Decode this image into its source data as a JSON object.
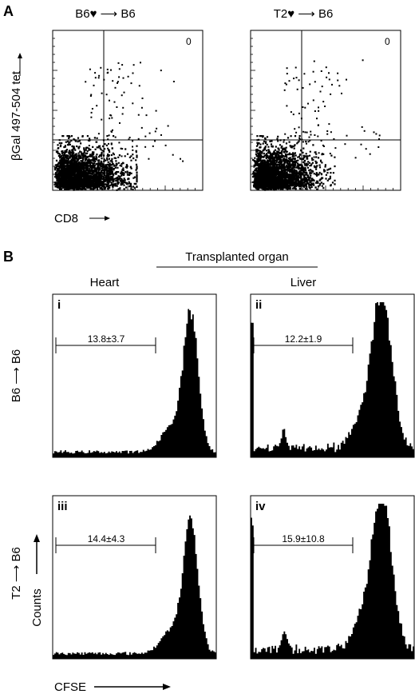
{
  "figure": {
    "panel_a_label": "A",
    "panel_b_label": "B",
    "transplanted_organ_label": "Transplanted organ"
  },
  "colors": {
    "ink": "#000000",
    "background": "#ffffff"
  },
  "chart_data": [
    {
      "id": "a-left",
      "type": "scatter",
      "title": "B6♥ ⟶ B6",
      "ylabel": "βGal 497-504 tet",
      "xlabel": "CD8",
      "quadrant_count": "0",
      "density": "dense population near origin with sparse CD8+ tetramer+ events"
    },
    {
      "id": "a-right",
      "type": "scatter",
      "title": "T2♥ ⟶ B6",
      "ylabel": "",
      "xlabel": "",
      "quadrant_count": "0"
    },
    {
      "id": "b-i",
      "type": "area",
      "row_label": "B6 ⟶ B6",
      "column_label": "Heart",
      "roman": "i",
      "gate_label": "13.8±3.7",
      "peak_position": 0.84,
      "peak_height": 0.9
    },
    {
      "id": "b-ii",
      "type": "area",
      "row_label": "B6 ⟶ B6",
      "column_label": "Liver",
      "roman": "ii",
      "gate_label": "12.2±1.9",
      "peak_position": 0.8,
      "peak_height": 1.0
    },
    {
      "id": "b-iii",
      "type": "area",
      "row_label": "T2 ⟶ B6",
      "column_label": "Heart",
      "roman": "iii",
      "gate_label": "14.4±4.3",
      "peak_position": 0.84,
      "peak_height": 0.85
    },
    {
      "id": "b-iv",
      "type": "area",
      "row_label": "T2 ⟶ B6",
      "column_label": "Liver",
      "roman": "iv",
      "gate_label": "15.9±10.8",
      "peak_position": 0.8,
      "peak_height": 1.0
    }
  ],
  "axes_b": {
    "ylabel": "Counts",
    "xlabel": "CFSE"
  }
}
